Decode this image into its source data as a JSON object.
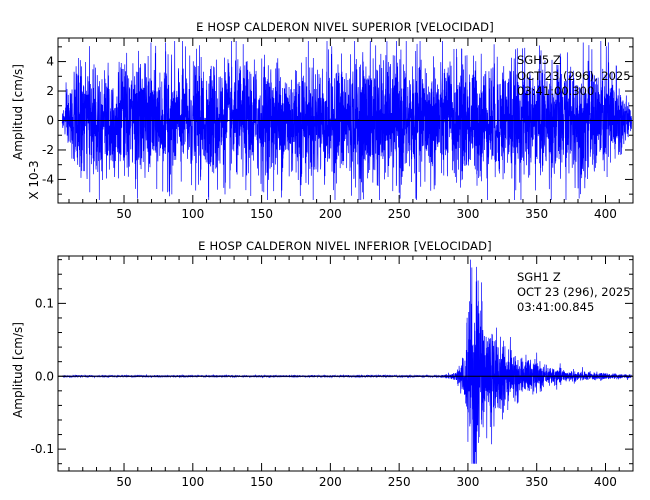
{
  "chart_data": [
    {
      "type": "line",
      "title": "E HOSP CALDERON NIVEL SUPERIOR [VELOCIDAD]",
      "ylabel": "Amplitud [cm/s]",
      "yscale_label": "X 10-3",
      "xlim": [
        2,
        420
      ],
      "ylim": [
        -5.6,
        5.6
      ],
      "xticks": [
        50,
        100,
        150,
        200,
        250,
        300,
        350,
        400
      ],
      "yticks": [
        -4,
        -2,
        0,
        2,
        4
      ],
      "series_color": "#0000ff",
      "annotation": {
        "line1": "SGH5   Z",
        "line2": "OCT 23 (296), 2025",
        "line3": "03:41:00.300"
      },
      "signal": {
        "kind": "noise",
        "x_start": 5,
        "x_end": 419,
        "peak_amplitude": 5.4,
        "envelope_x": [
          5,
          8,
          15,
          30,
          100,
          200,
          230,
          250,
          300,
          380,
          405,
          415,
          419
        ],
        "envelope_y": [
          0.3,
          1.2,
          2.4,
          2.6,
          2.6,
          2.7,
          3.0,
          2.8,
          2.7,
          2.6,
          2.6,
          1.2,
          0.3
        ]
      }
    },
    {
      "type": "line",
      "title": "E HOSP CALDERON NIVEL INFERIOR [VELOCIDAD]",
      "ylabel": "Amplitud  [cm/s]",
      "xlim": [
        2,
        420
      ],
      "ylim": [
        -0.13,
        0.165
      ],
      "xticks": [
        50,
        100,
        150,
        200,
        250,
        300,
        350,
        400
      ],
      "yticks": [
        -0.1,
        0.0,
        0.1
      ],
      "ytick_labels": [
        "-0.1",
        "0.0",
        "0.1"
      ],
      "series_color": "#0000ff",
      "annotation": {
        "line1": "SGH1   Z",
        "line2": "OCT 23 (296), 2025",
        "line3": "03:41:00.845"
      },
      "signal": {
        "kind": "event",
        "x_start": 5,
        "x_end": 419,
        "peak_amplitude": 0.16,
        "min_amplitude": -0.12,
        "envelope_x": [
          5,
          280,
          290,
          294,
          298,
          302,
          305,
          310,
          320,
          340,
          360,
          380,
          400,
          419
        ],
        "envelope_y": [
          0.0008,
          0.001,
          0.003,
          0.012,
          0.03,
          0.1,
          0.13,
          0.07,
          0.04,
          0.018,
          0.009,
          0.005,
          0.003,
          0.002
        ]
      }
    }
  ]
}
